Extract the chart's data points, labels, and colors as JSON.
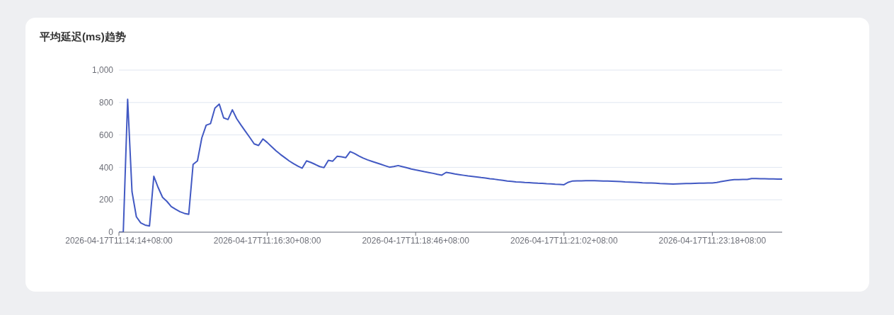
{
  "chart_data": {
    "type": "line",
    "title": "平均延迟(ms)趋势",
    "categories": [
      "2026-04-17T11:14:14+08:00",
      null,
      null,
      null,
      null,
      null,
      null,
      null,
      null,
      null,
      null,
      null,
      null,
      null,
      null,
      null,
      null,
      null,
      null,
      null,
      null,
      null,
      null,
      null,
      null,
      null,
      null,
      null,
      null,
      null,
      null,
      null,
      null,
      null,
      "2026-04-17T11:16:30+08:00",
      null,
      null,
      null,
      null,
      null,
      null,
      null,
      null,
      null,
      null,
      null,
      null,
      null,
      null,
      null,
      null,
      null,
      null,
      null,
      null,
      null,
      null,
      null,
      null,
      null,
      null,
      null,
      null,
      null,
      null,
      null,
      null,
      null,
      "2026-04-17T11:18:46+08:00",
      null,
      null,
      null,
      null,
      null,
      null,
      null,
      null,
      null,
      null,
      null,
      null,
      null,
      null,
      null,
      null,
      null,
      null,
      null,
      null,
      null,
      null,
      null,
      null,
      null,
      null,
      null,
      null,
      null,
      null,
      null,
      null,
      null,
      "2026-04-17T11:21:02+08:00",
      null,
      null,
      null,
      null,
      null,
      null,
      null,
      null,
      null,
      null,
      null,
      null,
      null,
      null,
      null,
      null,
      null,
      null,
      null,
      null,
      null,
      null,
      null,
      null,
      null,
      null,
      null,
      null,
      null,
      null,
      null,
      null,
      null,
      "2026-04-17T11:23:18+08:00",
      null,
      null,
      null,
      null,
      null,
      null,
      null,
      null,
      null,
      null,
      null,
      null,
      null,
      null,
      null,
      null
    ],
    "series": [
      {
        "color": "#4259c3",
        "values": [
          0,
          0,
          820,
          250,
          95,
          57,
          44,
          38,
          345,
          275,
          215,
          190,
          158,
          141,
          126,
          116,
          110,
          418,
          440,
          582,
          660,
          670,
          765,
          790,
          705,
          695,
          755,
          700,
          660,
          622,
          584,
          545,
          535,
          575,
          553,
          527,
          502,
          480,
          460,
          440,
          423,
          408,
          395,
          440,
          430,
          418,
          405,
          398,
          443,
          438,
          468,
          465,
          460,
          497,
          485,
          470,
          457,
          446,
          437,
          428,
          419,
          410,
          401,
          405,
          411,
          404,
          397,
          390,
          384,
          379,
          373,
          368,
          363,
          357,
          352,
          369,
          365,
          359,
          355,
          351,
          347,
          344,
          341,
          337,
          334,
          330,
          327,
          323,
          320,
          316,
          313,
          310,
          309,
          307,
          306,
          304,
          302,
          301,
          299,
          298,
          296,
          295,
          293,
          308,
          316,
          317,
          317,
          318,
          318,
          318,
          317,
          316,
          315,
          314,
          313,
          312,
          310,
          309,
          308,
          307,
          305,
          304,
          303,
          302,
          300,
          299,
          298,
          297,
          298,
          299,
          300,
          300,
          301,
          302,
          302,
          303,
          304,
          307,
          312,
          317,
          321,
          324,
          324,
          325,
          325,
          331,
          331,
          330,
          330,
          329,
          329,
          328,
          328
        ]
      }
    ],
    "ylim": [
      0,
      1000
    ],
    "yticks": [
      0,
      200,
      400,
      600,
      800,
      {
        "value": 1000,
        "label": "1,000"
      }
    ],
    "grid": "y"
  }
}
